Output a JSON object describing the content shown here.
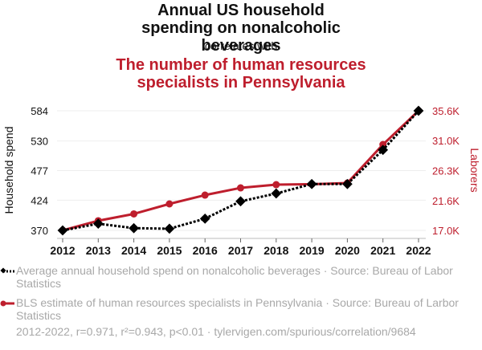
{
  "header": {
    "title": "Annual US household spending on nonalcoholic beverages",
    "connector": "correlates with",
    "subtitle": "The number of human resources specialists in Pennsylvania"
  },
  "colors": {
    "series1": "#000000",
    "series2": "#be1e2d",
    "grid": "#eeeeee",
    "axis": "#bbbbbb",
    "muted_text": "#a8a8a8"
  },
  "chart_data": {
    "type": "line",
    "title": "Annual US household spending on nonalcoholic beverages correlates with The number of human resources specialists in Pennsylvania",
    "xlabel": "",
    "x": [
      2012,
      2013,
      2014,
      2015,
      2016,
      2017,
      2018,
      2019,
      2020,
      2021,
      2022
    ],
    "x_tick_labels": [
      "2012",
      "2013",
      "2014",
      "2015",
      "2016",
      "2017",
      "2018",
      "2019",
      "2020",
      "2021",
      "2022"
    ],
    "y_left": {
      "label": "Household spend",
      "ticks": [
        370,
        424,
        477,
        530,
        584
      ],
      "tick_labels": [
        "370",
        "424",
        "477",
        "530",
        "584"
      ],
      "range": [
        370,
        584
      ]
    },
    "y_right": {
      "label": "Laborers",
      "ticks": [
        17000,
        21600,
        26300,
        31000,
        35600
      ],
      "tick_labels": [
        "17.0K",
        "21.6K",
        "26.3K",
        "31.0K",
        "35.6K"
      ],
      "range": [
        17000,
        35600
      ]
    },
    "grid": true,
    "legend_position": "bottom",
    "series": [
      {
        "name": "Average annual household spend on nonalcoholic beverages · Source: Bureau of Labor Statistics",
        "axis": "left",
        "style": "dotted",
        "marker": "diamond",
        "color": "#000000",
        "values": [
          370,
          382,
          374,
          373,
          391,
          422,
          436,
          453,
          453,
          514,
          584
        ]
      },
      {
        "name": "BLS estimate of human resources specialists in Pennsylvania · Source: Bureau of Larbor Statistics",
        "axis": "right",
        "style": "solid",
        "marker": "circle",
        "color": "#be1e2d",
        "values": [
          17000,
          18500,
          19560,
          21120,
          22490,
          23610,
          24110,
          24180,
          24360,
          30350,
          35600
        ]
      }
    ]
  },
  "legend": {
    "item1": "Average annual household spend on nonalcoholic beverages · Source: Bureau of Labor Statistics",
    "item2": "BLS estimate of human resources specialists in Pennsylvania · Source: Bureau of Larbor Statistics"
  },
  "footer": "2012-2022, r=0.971, r²=0.943, p<0.01 · tylervigen.com/spurious/correlation/9684"
}
